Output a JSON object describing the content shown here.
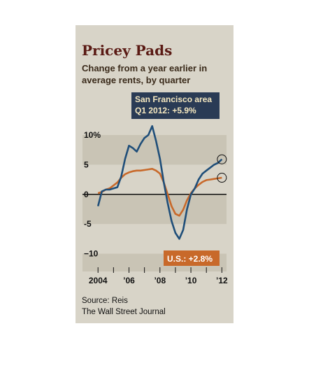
{
  "chart_data": {
    "type": "line",
    "title": "Pricey Pads",
    "subtitle_lines": [
      "Change from a year earlier in",
      "average rents, by quarter"
    ],
    "ylim": [
      -13,
      12
    ],
    "xlim": [
      2003.9,
      2012.3
    ],
    "y_ticks": [
      {
        "value": 10,
        "label": "10%"
      },
      {
        "value": 5,
        "label": "5"
      },
      {
        "value": 0,
        "label": "0"
      },
      {
        "value": -5,
        "label": "-5"
      },
      {
        "value": -10,
        "label": "−10"
      }
    ],
    "x_ticks": [
      {
        "value": 2004,
        "label": "2004"
      },
      {
        "value": 2006,
        "label": "’06"
      },
      {
        "value": 2008,
        "label": "’08"
      },
      {
        "value": 2010,
        "label": "’10"
      },
      {
        "value": 2012,
        "label": "’12"
      }
    ],
    "series": [
      {
        "color": "#1f4e79",
        "points": [
          [
            2004.0,
            -2.0
          ],
          [
            2004.25,
            0.5
          ],
          [
            2004.5,
            0.8
          ],
          [
            2004.75,
            0.8
          ],
          [
            2005.0,
            1.0
          ],
          [
            2005.25,
            1.2
          ],
          [
            2005.5,
            3.0
          ],
          [
            2005.75,
            6.0
          ],
          [
            2006.0,
            8.2
          ],
          [
            2006.25,
            7.8
          ],
          [
            2006.5,
            7.2
          ],
          [
            2006.75,
            8.5
          ],
          [
            2007.0,
            9.5
          ],
          [
            2007.25,
            10.0
          ],
          [
            2007.5,
            11.5
          ],
          [
            2007.75,
            9.0
          ],
          [
            2008.0,
            6.0
          ],
          [
            2008.25,
            2.0
          ],
          [
            2008.5,
            -1.5
          ],
          [
            2008.75,
            -4.5
          ],
          [
            2009.0,
            -6.5
          ],
          [
            2009.25,
            -7.5
          ],
          [
            2009.5,
            -6.0
          ],
          [
            2009.75,
            -2.5
          ],
          [
            2010.0,
            0.0
          ],
          [
            2010.25,
            1.0
          ],
          [
            2010.5,
            2.5
          ],
          [
            2010.75,
            3.5
          ],
          [
            2011.0,
            4.0
          ],
          [
            2011.25,
            4.5
          ],
          [
            2011.5,
            5.0
          ],
          [
            2011.75,
            5.3
          ],
          [
            2012.0,
            5.9
          ]
        ]
      },
      {
        "color": "#c8692a",
        "points": [
          [
            2004.0,
            0.2
          ],
          [
            2004.25,
            0.4
          ],
          [
            2004.5,
            0.8
          ],
          [
            2004.75,
            1.0
          ],
          [
            2005.0,
            1.5
          ],
          [
            2005.25,
            2.0
          ],
          [
            2005.5,
            2.8
          ],
          [
            2005.75,
            3.4
          ],
          [
            2006.0,
            3.7
          ],
          [
            2006.25,
            3.9
          ],
          [
            2006.5,
            4.0
          ],
          [
            2006.75,
            4.0
          ],
          [
            2007.0,
            4.1
          ],
          [
            2007.25,
            4.2
          ],
          [
            2007.5,
            4.3
          ],
          [
            2007.75,
            4.0
          ],
          [
            2008.0,
            3.5
          ],
          [
            2008.25,
            2.0
          ],
          [
            2008.5,
            0.0
          ],
          [
            2008.75,
            -2.0
          ],
          [
            2009.0,
            -3.3
          ],
          [
            2009.25,
            -3.6
          ],
          [
            2009.5,
            -2.6
          ],
          [
            2009.75,
            -1.0
          ],
          [
            2010.0,
            0.2
          ],
          [
            2010.25,
            1.0
          ],
          [
            2010.5,
            1.6
          ],
          [
            2010.75,
            2.1
          ],
          [
            2011.0,
            2.4
          ],
          [
            2011.25,
            2.5
          ],
          [
            2011.5,
            2.6
          ],
          [
            2011.75,
            2.7
          ],
          [
            2012.0,
            2.8
          ]
        ]
      }
    ],
    "callouts": {
      "sf_line1": "San Francisco area",
      "sf_line2": "Q1 2012:  +5.9%",
      "us": "U.S.: +2.8%"
    },
    "source": "Source: Reis",
    "publisher": "The Wall Street Journal"
  }
}
